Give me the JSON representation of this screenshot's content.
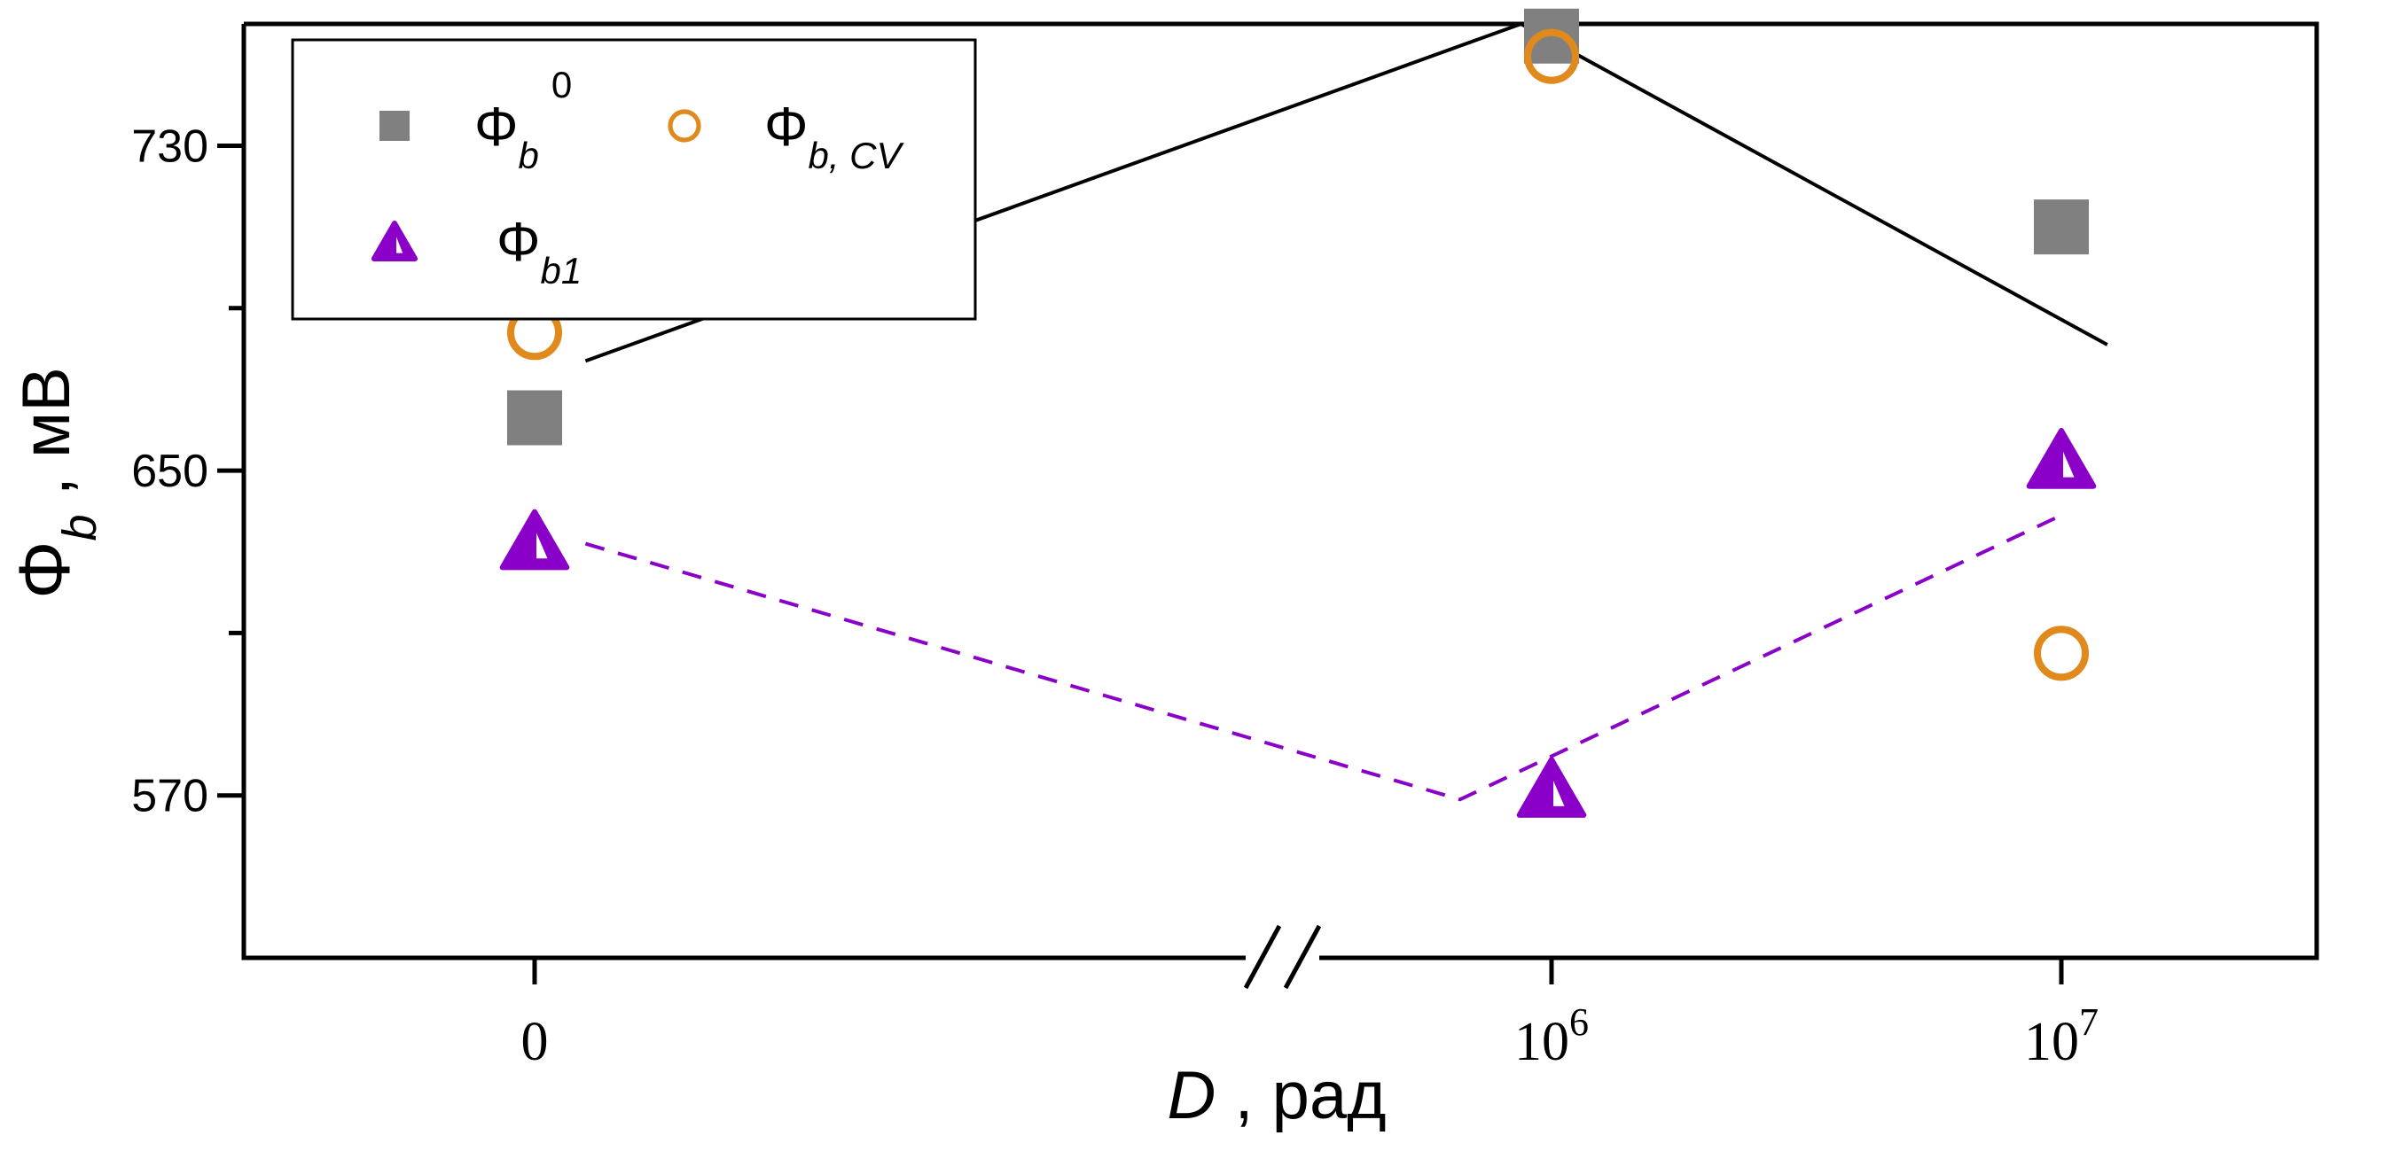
{
  "chart_data": {
    "type": "scatter",
    "title": "",
    "xlabel": {
      "symbol": "D",
      "rest": " ,  рад"
    },
    "ylabel": {
      "symbol": "Φ",
      "sub": "b",
      "rest": " ,  мВ"
    },
    "x_categories": [
      "0",
      "10^6",
      "10^7"
    ],
    "x_tick_labels": [
      {
        "base": "0",
        "exp": ""
      },
      {
        "base": "10",
        "exp": "6"
      },
      {
        "base": "10",
        "exp": "7"
      }
    ],
    "x_axis_break": "between 0 and 10^6",
    "ylim": [
      530,
      760
    ],
    "y_ticks": [
      570,
      650,
      730
    ],
    "y_minor_ticks": [
      610,
      690
    ],
    "series": [
      {
        "name": {
          "main": "Φ",
          "sub": "b",
          "sup": "0"
        },
        "marker": "filled-square",
        "color": "#808080",
        "values": [
          663,
          757,
          710
        ]
      },
      {
        "name": {
          "main": "Φ",
          "sub": "b, CV",
          "sup": ""
        },
        "marker": "open-circle",
        "color": "#E08A1E",
        "values": [
          684,
          752,
          605
        ]
      },
      {
        "name": {
          "main": "Φ",
          "sub": "b1",
          "sup": ""
        },
        "marker": "half-filled-triangle",
        "color": "#8A00C8",
        "values": [
          633,
          572,
          653
        ]
      }
    ],
    "lines": [
      {
        "style": "solid",
        "color": "#000000",
        "points": [
          {
            "x": 0.05,
            "y": 677
          },
          {
            "x": 0.97,
            "y": 760
          },
          {
            "x": 2.09,
            "y": 681
          }
        ]
      },
      {
        "style": "dashed",
        "color": "#8A00C8",
        "points": [
          {
            "x": 0.05,
            "y": 632
          },
          {
            "x": 0.91,
            "y": 569
          },
          {
            "x": 2.0,
            "y": 639
          }
        ]
      }
    ],
    "legend": {
      "placement": "top-left"
    }
  }
}
